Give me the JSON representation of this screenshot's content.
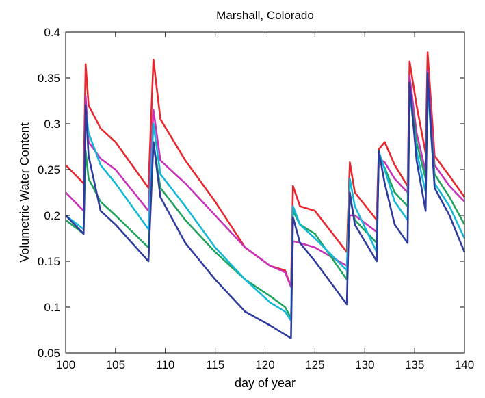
{
  "chart_data": {
    "type": "line",
    "title": "Marshall, Colorado",
    "xlabel": "day of year",
    "ylabel": "Volumetric Water Content",
    "xlim": [
      100,
      140
    ],
    "ylim": [
      0.05,
      0.4
    ],
    "xticks": [
      100,
      105,
      110,
      115,
      120,
      125,
      130,
      135,
      140
    ],
    "yticks": [
      0.05,
      0.1,
      0.15,
      0.2,
      0.25,
      0.3,
      0.35,
      0.4
    ],
    "ytick_labels": [
      "0.05",
      "0.1",
      "0.15",
      "0.2",
      "0.25",
      "0.3",
      "0.35",
      "0.4"
    ],
    "grid": false,
    "legend": "none",
    "series": [
      {
        "color": "#e8262b",
        "x": [
          100,
          101.8,
          102.0,
          102.3,
          103.5,
          105,
          108.3,
          108.8,
          109.5,
          112,
          115,
          118,
          120.5,
          122.0,
          122.6,
          122.8,
          123.5,
          125,
          128.2,
          128.5,
          129,
          131.2,
          131.4,
          132,
          133,
          134.3,
          134.5,
          135.2,
          136.1,
          136.3,
          137,
          138.5,
          140
        ],
        "y": [
          0.255,
          0.235,
          0.365,
          0.32,
          0.295,
          0.28,
          0.23,
          0.37,
          0.305,
          0.26,
          0.215,
          0.165,
          0.145,
          0.14,
          0.122,
          0.232,
          0.21,
          0.205,
          0.16,
          0.258,
          0.225,
          0.195,
          0.272,
          0.28,
          0.255,
          0.232,
          0.368,
          0.32,
          0.268,
          0.378,
          0.265,
          0.243,
          0.22
        ]
      },
      {
        "color": "#c832b8",
        "x": [
          100,
          101.8,
          102.0,
          102.3,
          103.5,
          105,
          108.3,
          108.8,
          109.5,
          112,
          115,
          118,
          120.5,
          122.0,
          122.6,
          122.8,
          123.5,
          125,
          128.2,
          128.5,
          129,
          131.2,
          131.4,
          132,
          133,
          134.3,
          134.5,
          135.2,
          136.1,
          136.3,
          137,
          138.5,
          140
        ],
        "y": [
          0.225,
          0.205,
          0.33,
          0.28,
          0.262,
          0.25,
          0.205,
          0.315,
          0.26,
          0.235,
          0.2,
          0.165,
          0.145,
          0.138,
          0.122,
          0.172,
          0.17,
          0.165,
          0.145,
          0.2,
          0.2,
          0.182,
          0.262,
          0.258,
          0.24,
          0.225,
          0.352,
          0.29,
          0.248,
          0.358,
          0.255,
          0.232,
          0.215
        ]
      },
      {
        "color": "#1fa35c",
        "x": [
          100,
          101.8,
          102.0,
          102.3,
          103.5,
          105,
          108.3,
          108.8,
          109.5,
          112,
          115,
          118,
          120.5,
          122.0,
          122.6,
          122.8,
          123.5,
          125,
          128.2,
          128.5,
          129,
          131.2,
          131.4,
          132,
          133,
          134.3,
          134.5,
          135.2,
          136.1,
          136.3,
          137,
          138.5,
          140
        ],
        "y": [
          0.195,
          0.18,
          0.27,
          0.24,
          0.215,
          0.2,
          0.165,
          0.28,
          0.23,
          0.195,
          0.16,
          0.13,
          0.112,
          0.1,
          0.088,
          0.205,
          0.19,
          0.18,
          0.13,
          0.22,
          0.195,
          0.17,
          0.262,
          0.252,
          0.225,
          0.21,
          0.34,
          0.28,
          0.24,
          0.345,
          0.245,
          0.22,
          0.19
        ]
      },
      {
        "color": "#12b8d8",
        "x": [
          100,
          101.8,
          102.0,
          102.3,
          103.5,
          105,
          108.3,
          108.8,
          109.5,
          112,
          115,
          118,
          120.5,
          122.0,
          122.6,
          122.8,
          123.5,
          125,
          128.2,
          128.5,
          129,
          131.2,
          131.4,
          132,
          133,
          134.3,
          134.5,
          135.2,
          136.1,
          136.3,
          137,
          138.5,
          140
        ],
        "y": [
          0.2,
          0.185,
          0.315,
          0.29,
          0.255,
          0.235,
          0.185,
          0.3,
          0.245,
          0.21,
          0.165,
          0.13,
          0.105,
          0.095,
          0.085,
          0.21,
          0.19,
          0.175,
          0.14,
          0.24,
          0.21,
          0.16,
          0.27,
          0.25,
          0.215,
          0.195,
          0.335,
          0.27,
          0.225,
          0.34,
          0.235,
          0.21,
          0.175
        ]
      },
      {
        "color": "#2d3a9e",
        "x": [
          100,
          101.8,
          102.0,
          102.3,
          103.5,
          105,
          108.3,
          108.8,
          109.5,
          112,
          115,
          118,
          120.5,
          122.0,
          122.6,
          122.8,
          123.5,
          125,
          128.2,
          128.5,
          129,
          131.2,
          131.4,
          132,
          133,
          134.3,
          134.5,
          135.2,
          136.1,
          136.3,
          137,
          138.5,
          140
        ],
        "y": [
          0.2,
          0.18,
          0.32,
          0.265,
          0.205,
          0.19,
          0.15,
          0.28,
          0.22,
          0.17,
          0.13,
          0.095,
          0.08,
          0.07,
          0.066,
          0.198,
          0.17,
          0.15,
          0.103,
          0.225,
          0.19,
          0.15,
          0.27,
          0.235,
          0.19,
          0.17,
          0.345,
          0.26,
          0.205,
          0.355,
          0.23,
          0.2,
          0.16
        ]
      }
    ]
  }
}
